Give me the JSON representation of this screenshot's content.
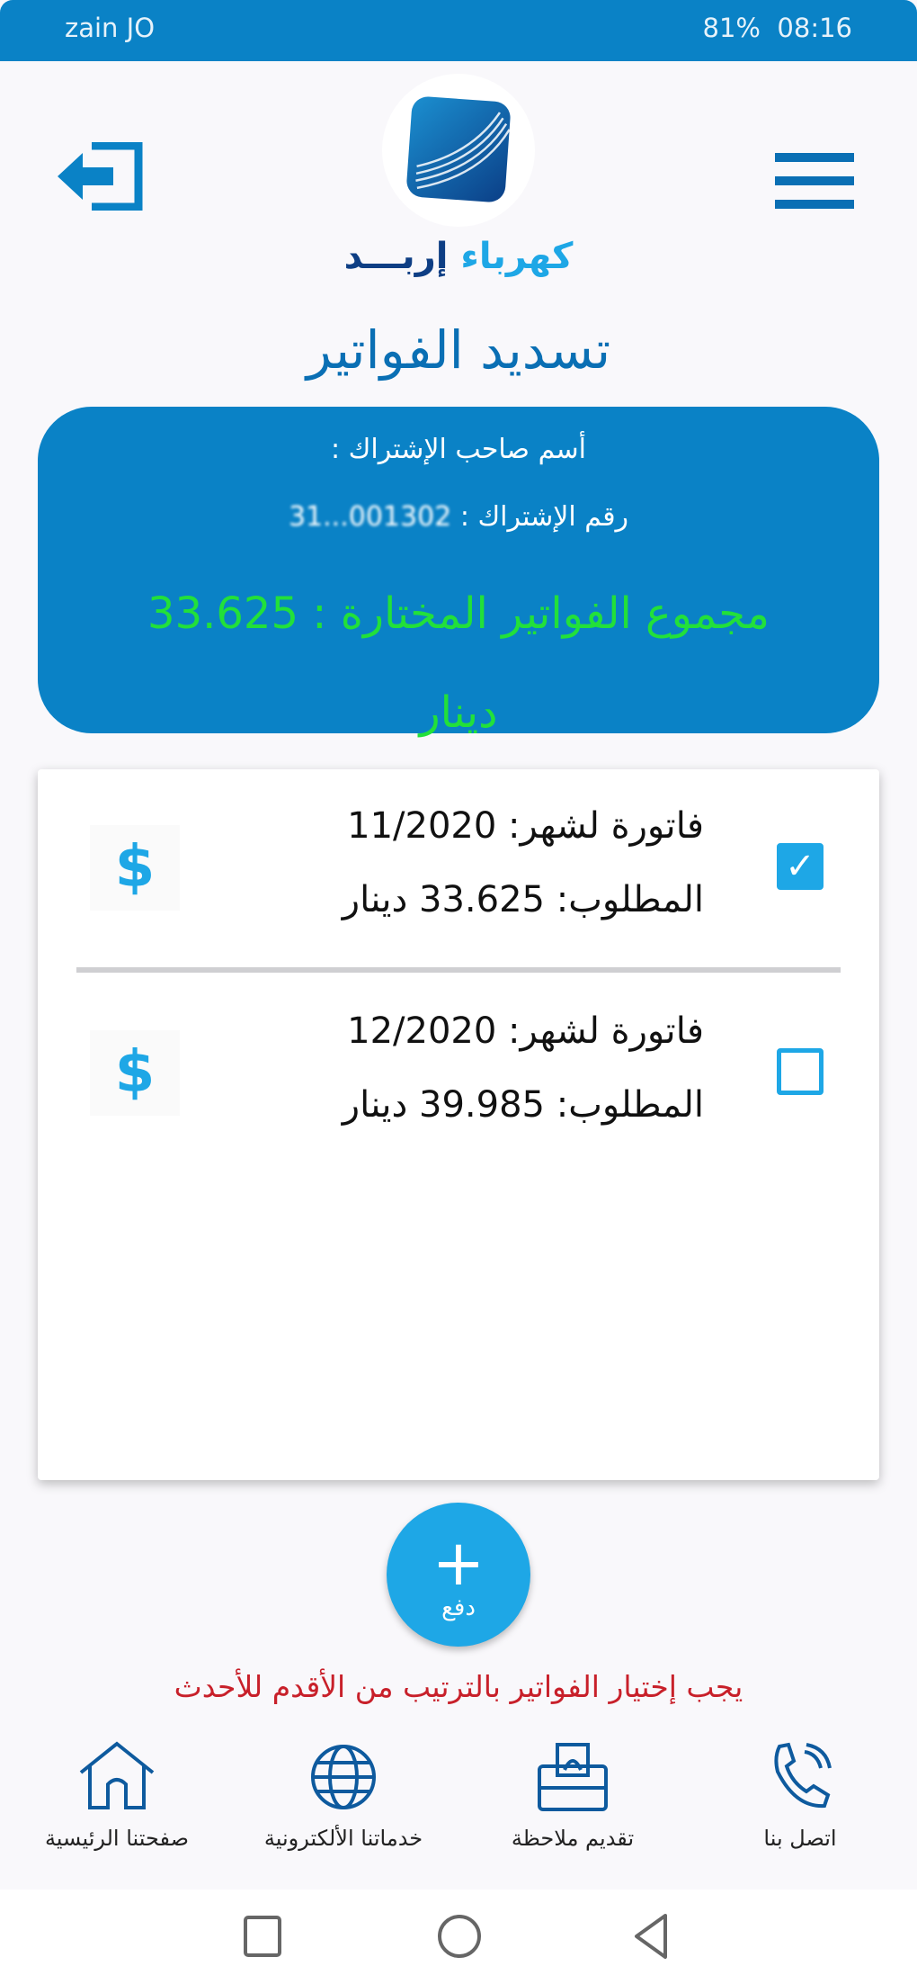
{
  "status_bar": {
    "carrier": "zain JO",
    "battery": "81%",
    "time": "08:16"
  },
  "header": {
    "brand_part1": "كهرباء",
    "brand_part2": "إربـــد",
    "title": "تسديد الفواتير"
  },
  "info": {
    "owner_label": "أسم صاحب الإشتراك :",
    "subscription_label": "رقم الإشتراك :",
    "subscription_number": "001302...31",
    "total_label": "مجموع الفواتير المختارة :",
    "total_value": "33.625",
    "currency": "دينار"
  },
  "bills": [
    {
      "month_label": "فاتورة لشهر:",
      "month": "11/2020",
      "amount_label": "المطلوب:",
      "amount": "33.625",
      "currency": "دينار",
      "checked": true
    },
    {
      "month_label": "فاتورة لشهر:",
      "month": "12/2020",
      "amount_label": "المطلوب:",
      "amount": "39.985",
      "currency": "دينار",
      "checked": false
    }
  ],
  "pay_button": {
    "label": "دفع",
    "icon": "plus-icon"
  },
  "warning": "يجب إختيار الفواتير بالترتيب من الأقدم للأحدث",
  "bottom_nav": [
    {
      "label": "صفحتنا الرئيسية",
      "icon": "home-icon"
    },
    {
      "label": "خدماتنا الألكترونية",
      "icon": "globe-icon"
    },
    {
      "label": "تقديم ملاحظة",
      "icon": "feedback-box-icon"
    },
    {
      "label": "اتصل بنا",
      "icon": "phone-icon"
    }
  ],
  "colors": {
    "primary": "#0a82c6",
    "accent": "#1ea7e6",
    "total_green": "#22e03a",
    "warning_red": "#c8202a"
  }
}
